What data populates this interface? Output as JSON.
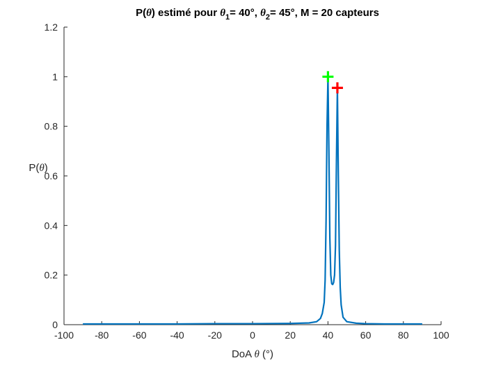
{
  "chart_data": {
    "type": "line",
    "title": {
      "p1": "P(",
      "g1": "θ",
      "p2": ") estimé pour ",
      "g2": "θ",
      "s2": "1",
      "p3": "= 40°, ",
      "g3": "θ",
      "s3": "2",
      "p4": "= 45°, M = 20 capteurs"
    },
    "xlabel": {
      "pre": "DoA ",
      "greek": "θ",
      "post": " (°)"
    },
    "ylabel": {
      "pre": "P(",
      "greek": "θ",
      "post": ")"
    },
    "xlim": [
      -100,
      100
    ],
    "ylim": [
      0,
      1.2
    ],
    "xticks": [
      -100,
      -80,
      -60,
      -40,
      -20,
      0,
      20,
      40,
      60,
      80,
      100
    ],
    "xtick_labels": [
      "-100",
      "-80",
      "-60",
      "-40",
      "-20",
      "0",
      "20",
      "40",
      "60",
      "80",
      "100"
    ],
    "yticks": [
      0,
      0.2,
      0.4,
      0.6,
      0.8,
      1.0,
      1.2
    ],
    "ytick_labels": [
      "0",
      "0.2",
      "0.4",
      "0.6",
      "0.8",
      "1",
      "1.2"
    ],
    "grid": false,
    "series": [
      {
        "color": "#0072BD",
        "x": [
          -90,
          -80,
          -60,
          -40,
          -20,
          0,
          20,
          30,
          34,
          36,
          37,
          38,
          38.5,
          39,
          39.5,
          40,
          40.5,
          41,
          41.5,
          42,
          42.5,
          43,
          43.5,
          44,
          44.5,
          45,
          45.5,
          46,
          46.5,
          47,
          48,
          50,
          55,
          60,
          70,
          80,
          90
        ],
        "y": [
          0.003,
          0.003,
          0.003,
          0.003,
          0.004,
          0.004,
          0.005,
          0.007,
          0.012,
          0.025,
          0.045,
          0.09,
          0.18,
          0.42,
          0.8,
          1.0,
          0.7,
          0.35,
          0.2,
          0.165,
          0.162,
          0.17,
          0.2,
          0.32,
          0.66,
          0.955,
          0.6,
          0.3,
          0.15,
          0.08,
          0.03,
          0.012,
          0.006,
          0.004,
          0.003,
          0.003,
          0.003
        ]
      }
    ],
    "markers": [
      {
        "x": 40,
        "y": 1.0,
        "color": "#00FF00",
        "symbol": "+"
      },
      {
        "x": 45,
        "y": 0.955,
        "color": "#FF0000",
        "symbol": "+"
      }
    ]
  }
}
